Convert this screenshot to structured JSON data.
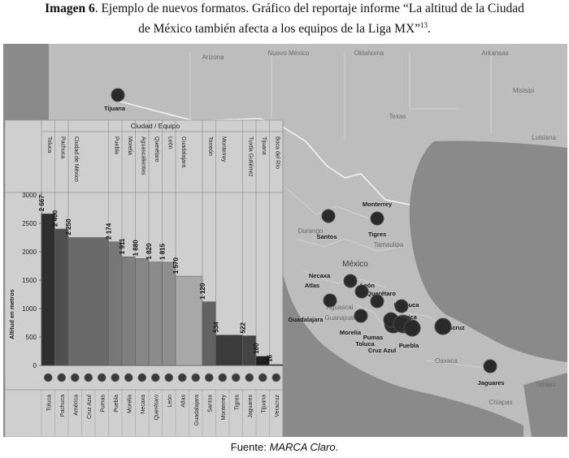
{
  "caption": {
    "label": "Imagen 6",
    "line1_rest": ". Ejemplo de nuevos formatos. Gráfico del reportaje informe “La altitud de la Ciudad",
    "line2": "de México también afecta a los equipos de la Liga MX”",
    "footnote": "13",
    "line2_end": "."
  },
  "source": {
    "prefix": "Fuente: ",
    "name": "MARCA Claro",
    "suffix": "."
  },
  "map": {
    "places": [
      "Arizona",
      "Nuevo México",
      "Oklahoma",
      "Arkansas",
      "Texas",
      "Misisipi",
      "Luisiana",
      "México",
      "Durango",
      "Tamaulipa",
      "Aguascal",
      "Guanajuat",
      "Oaxaca",
      "Chiapas",
      "Tabasc"
    ],
    "cities": [
      "Tijuana",
      "Monterrey",
      "Santos",
      "Tigres",
      "Necaxa",
      "Atlas",
      "León",
      "Querétaro",
      "Pachuca",
      "América",
      "Guadalajara",
      "Morelia",
      "Pumas",
      "Veracruz",
      "Toluca",
      "Cruz Azul",
      "Puebla",
      "Jaguares"
    ]
  },
  "chart_data": {
    "type": "bar",
    "title": "",
    "header": "Ciudad / Equipo",
    "ylabel": "Altitud en metros",
    "xlabel": "",
    "ylim": [
      0,
      3000
    ],
    "yticks": [
      0,
      500,
      1000,
      1500,
      2000,
      2500,
      3000
    ],
    "grid": false,
    "cities": [
      {
        "name": "Toluca",
        "value": 2667,
        "label": "2 667",
        "teams": [
          "Toluca"
        ],
        "color": "#2f2f2f"
      },
      {
        "name": "Pachuca",
        "value": 2400,
        "label": "2 400",
        "teams": [
          "Pachuca"
        ],
        "color": "#4f4f4f"
      },
      {
        "name": "Ciudad de México",
        "value": 2250,
        "label": "2 250",
        "teams": [
          "América",
          "Cruz Azul",
          "Pumas"
        ],
        "color": "#6a6a6a"
      },
      {
        "name": "Puebla",
        "value": 2174,
        "label": "2 174",
        "teams": [
          "Puebla"
        ],
        "color": "#777777"
      },
      {
        "name": "Morelia",
        "value": 1911,
        "label": "1 911",
        "teams": [
          "Morelia"
        ],
        "color": "#7f7f7f"
      },
      {
        "name": "Aguascalientes",
        "value": 1880,
        "label": "1 880",
        "teams": [
          "Necaxa"
        ],
        "color": "#868686"
      },
      {
        "name": "Querétaro",
        "value": 1820,
        "label": "1 820",
        "teams": [
          "Querétaro"
        ],
        "color": "#8b8b8b"
      },
      {
        "name": "León",
        "value": 1815,
        "label": "1 815",
        "teams": [
          "León"
        ],
        "color": "#8e8e8e"
      },
      {
        "name": "Guadalajara",
        "value": 1570,
        "label": "1 570",
        "teams": [
          "Atlas",
          "Guadalajara"
        ],
        "color": "#a8a8a8"
      },
      {
        "name": "Torreón",
        "value": 1120,
        "label": "1 120",
        "teams": [
          "Santos"
        ],
        "color": "#626262"
      },
      {
        "name": "Monterrey",
        "value": 534,
        "label": "534",
        "teams": [
          "Monterrey",
          "Tigres"
        ],
        "color": "#3b3b3b"
      },
      {
        "name": "Tuxtla Gutiérrez",
        "value": 522,
        "label": "522",
        "teams": [
          "Jaguares"
        ],
        "color": "#444444"
      },
      {
        "name": "Tijuana",
        "value": 160,
        "label": "160",
        "teams": [
          "Tijuana"
        ],
        "color": "#1f1f1f"
      },
      {
        "name": "Boca del Río",
        "value": 16,
        "label": "16",
        "teams": [
          "Veracruz"
        ],
        "color": "#222222"
      }
    ]
  }
}
